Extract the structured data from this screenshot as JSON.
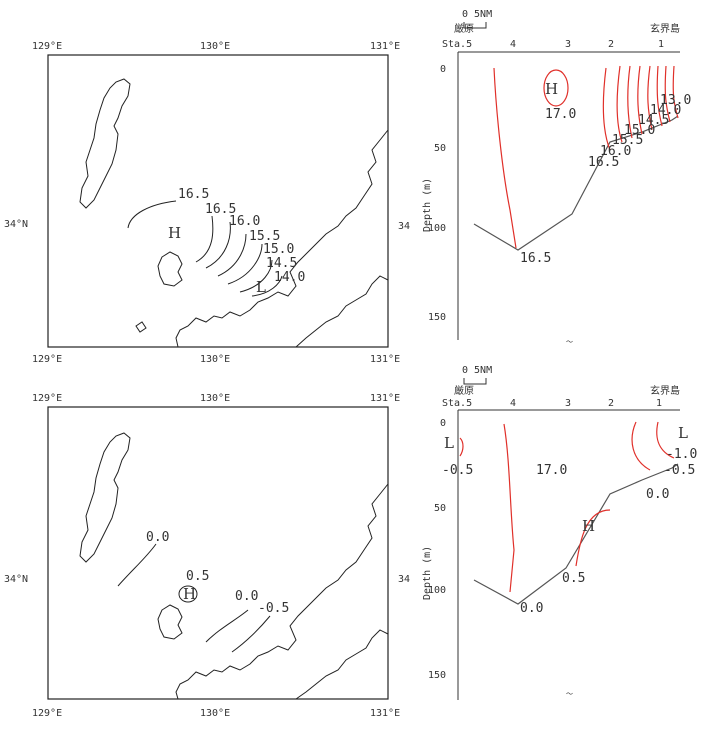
{
  "maps": [
    {
      "lon_labels_top": [
        "129°E",
        "130°E",
        "131°E"
      ],
      "lon_labels_bottom": [
        "129°E",
        "130°E",
        "131°E"
      ],
      "lat_label_left": "34°N",
      "lat_label_right": "34",
      "contour_labels": [
        "16.5",
        "16.5",
        "16.0",
        "15.5",
        "15.0",
        "14.5",
        "14.0"
      ],
      "markers": [
        "H",
        "L"
      ]
    },
    {
      "lon_labels_top": [
        "129°E",
        "130°E",
        "131°E"
      ],
      "lon_labels_bottom": [
        "129°E",
        "130°E",
        "131°E"
      ],
      "lat_label_left": "34°N",
      "lat_label_right": "34",
      "contour_labels": [
        "0.0",
        "0.5",
        "0.0",
        "-0.5"
      ],
      "markers": [
        "H"
      ]
    }
  ],
  "sections": [
    {
      "scale_label": "0  5NM",
      "left_place": "厳原",
      "right_place": "玄界島",
      "sta_label": "Sta.5",
      "stations": [
        "4",
        "3",
        "2",
        "1"
      ],
      "ylabel": "Depth (m)",
      "yticks": [
        "0",
        "50",
        "100",
        "150"
      ],
      "contour_labels": [
        "17.0",
        "16.5",
        "16.0",
        "15.5",
        "15.0",
        "14.5",
        "14.0",
        "13.0",
        "16.5"
      ],
      "markers": [
        "H"
      ],
      "footer": "〜"
    },
    {
      "scale_label": "0  5NM",
      "left_place": "厳原",
      "right_place": "玄界島",
      "sta_label": "Sta.5",
      "stations": [
        "4",
        "3",
        "2",
        "1"
      ],
      "ylabel": "Depth (m)",
      "yticks": [
        "0",
        "50",
        "100",
        "150"
      ],
      "contour_labels": [
        "-0.5",
        "17.0",
        "-1.0",
        "-0.5",
        "0.0",
        "0.5",
        "0.0"
      ],
      "markers": [
        "L",
        "L",
        "H"
      ],
      "footer": "〜"
    }
  ],
  "colors": {
    "contour_red": "#e0302a",
    "line_gray": "#555555"
  }
}
